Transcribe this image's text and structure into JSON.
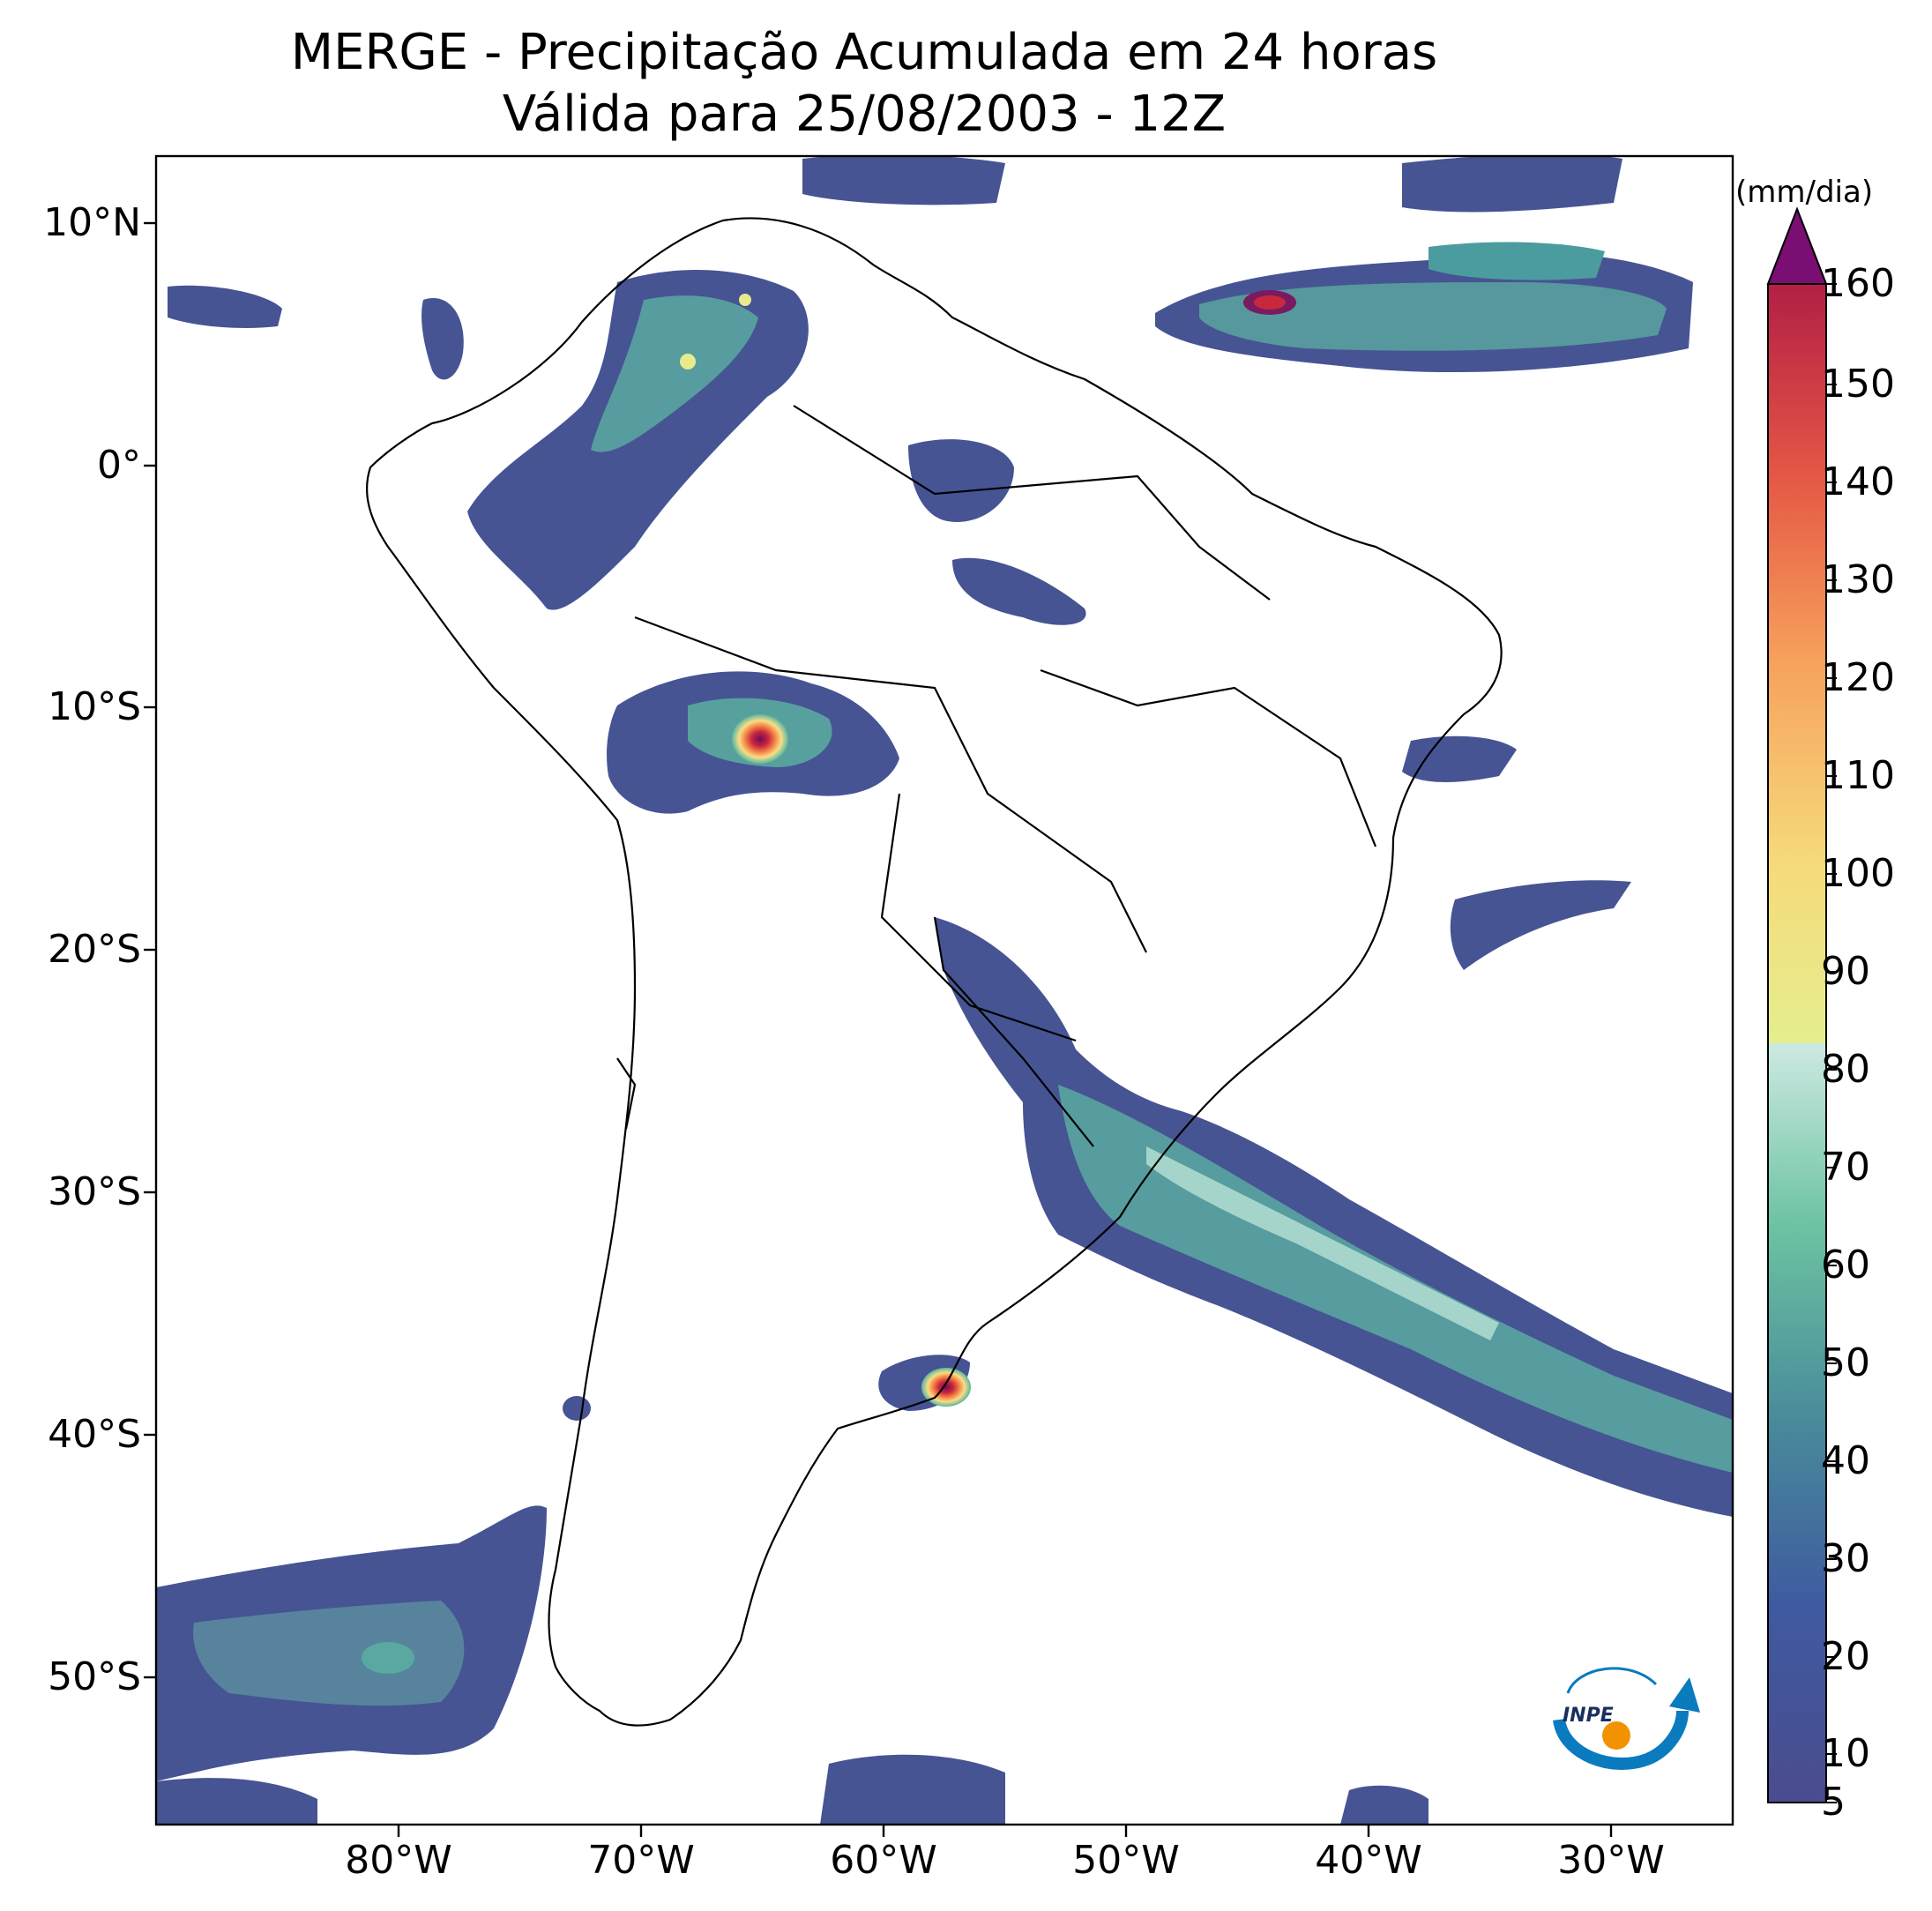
{
  "title": {
    "line1": "MERGE - Precipitação Acumulada em 24 horas",
    "line2": "Válida para 25/08/2003 - 12Z"
  },
  "map": {
    "lat_ticks": [
      "10°N",
      "0°",
      "10°S",
      "20°S",
      "30°S",
      "40°S",
      "50°S"
    ],
    "lon_ticks": [
      "80°W",
      "70°W",
      "60°W",
      "50°W",
      "40°W",
      "30°W"
    ],
    "extent": {
      "lon": [
        -90,
        -25
      ],
      "lat": [
        -56,
        13
      ]
    },
    "grid": false
  },
  "colorbar": {
    "units": "(mm/dia)",
    "ticks": [
      "5",
      "10",
      "20",
      "30",
      "40",
      "50",
      "60",
      "70",
      "80",
      "90",
      "100",
      "110",
      "120",
      "130",
      "140",
      "150",
      "160"
    ],
    "extend": "max",
    "colormap": "Spectral_r"
  },
  "logo": {
    "text": "INPE",
    "colors": [
      "#0a7bbf",
      "#f39200"
    ]
  }
}
